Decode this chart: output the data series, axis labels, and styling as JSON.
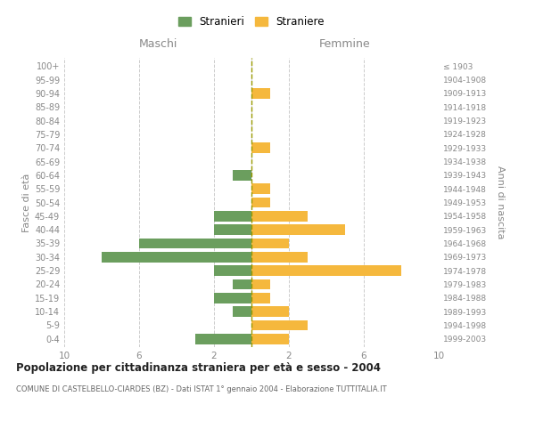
{
  "age_groups": [
    "100+",
    "95-99",
    "90-94",
    "85-89",
    "80-84",
    "75-79",
    "70-74",
    "65-69",
    "60-64",
    "55-59",
    "50-54",
    "45-49",
    "40-44",
    "35-39",
    "30-34",
    "25-29",
    "20-24",
    "15-19",
    "10-14",
    "5-9",
    "0-4"
  ],
  "birth_years": [
    "≤ 1903",
    "1904-1908",
    "1909-1913",
    "1914-1918",
    "1919-1923",
    "1924-1928",
    "1929-1933",
    "1934-1938",
    "1939-1943",
    "1944-1948",
    "1949-1953",
    "1954-1958",
    "1959-1963",
    "1964-1968",
    "1969-1973",
    "1974-1978",
    "1979-1983",
    "1984-1988",
    "1989-1993",
    "1994-1998",
    "1999-2003"
  ],
  "males": [
    0,
    0,
    0,
    0,
    0,
    0,
    0,
    0,
    1,
    0,
    0,
    2,
    2,
    6,
    8,
    2,
    1,
    2,
    1,
    0,
    3
  ],
  "females": [
    0,
    0,
    1,
    0,
    0,
    0,
    1,
    0,
    0,
    1,
    1,
    3,
    5,
    2,
    3,
    8,
    1,
    1,
    2,
    3,
    2
  ],
  "male_color": "#6b9e5e",
  "female_color": "#f5b83d",
  "dashed_line_color": "#999900",
  "grid_color": "#cccccc",
  "bg_color": "#ffffff",
  "text_color": "#888888",
  "title": "Popolazione per cittadinanza straniera per età e sesso - 2004",
  "subtitle": "COMUNE DI CASTELBELLO-CIARDES (BZ) - Dati ISTAT 1° gennaio 2004 - Elaborazione TUTTITALIA.IT",
  "label_maschi": "Maschi",
  "label_femmine": "Femmine",
  "ylabel_left": "Fasce di età",
  "ylabel_right": "Anni di nascita",
  "legend_male": "Stranieri",
  "legend_female": "Straniere",
  "xlim": 10,
  "bar_height": 0.75
}
